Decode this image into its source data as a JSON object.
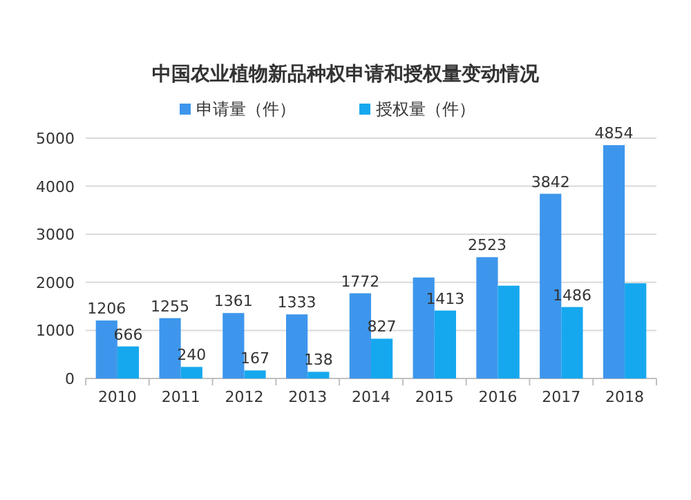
{
  "chart_data": {
    "type": "bar",
    "title": "中国农业植物新品种权申请和授权量变动情况",
    "categories": [
      "2010",
      "2011",
      "2012",
      "2013",
      "2014",
      "2015",
      "2016",
      "2017",
      "2018"
    ],
    "series": [
      {
        "name": "申请量（件）",
        "color": "#3d96ec",
        "values": [
          1206,
          1255,
          1361,
          1333,
          1772,
          2100,
          2523,
          3842,
          4854
        ],
        "value_labels": [
          "1206",
          "1255",
          "1361",
          "1333",
          "1772",
          null,
          "2523",
          "3842",
          "4854"
        ]
      },
      {
        "name": "授权量（件）",
        "color": "#16a8ee",
        "values": [
          666,
          240,
          167,
          138,
          827,
          1413,
          1930,
          1486,
          1980
        ],
        "value_labels": [
          "666",
          "240",
          "167",
          "138",
          "827",
          "1413",
          null,
          "1486",
          null
        ]
      }
    ],
    "ylim": [
      0,
      5000
    ],
    "yticks": [
      0,
      1000,
      2000,
      3000,
      4000,
      5000
    ],
    "grid": "y",
    "legend": "top"
  }
}
